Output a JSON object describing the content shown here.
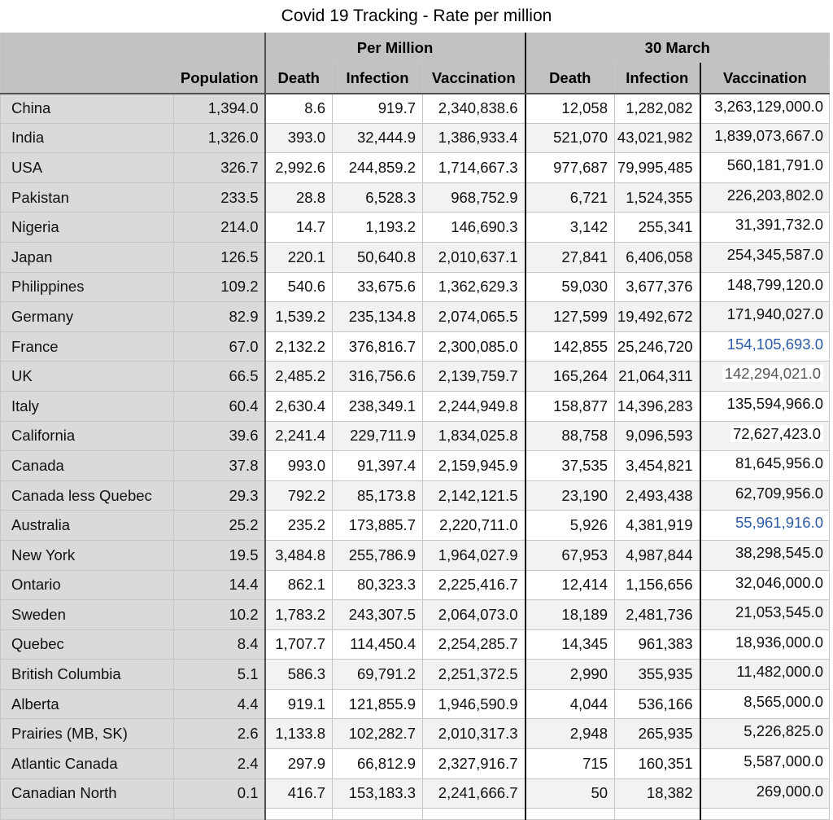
{
  "page": {
    "title": "Covid 19 Tracking - Rate per million"
  },
  "colors": {
    "header_bg": "#c2c2c2",
    "label_col_bg": "#dadada",
    "row_alt_bg": "#f2f2f2",
    "border_light": "#c6c6c6",
    "border_dark": "#4f4f4f",
    "border_black": "#161616",
    "blue_value_text": "#2e5ca6",
    "gray_value_text": "#57575a",
    "highlight_bg": "#ffffff"
  },
  "chart_data": {
    "type": "table",
    "title": "Covid 19 Tracking - Rate per million",
    "group_headers": [
      {
        "label": "Per Million",
        "span": 3
      },
      {
        "label": "30 March",
        "span": 3
      }
    ],
    "columns": [
      "",
      "Population",
      "Death",
      "Infection",
      "Vaccination",
      "Death",
      "Infection",
      "Vaccination"
    ],
    "rows": [
      [
        "China",
        "1,394.0",
        "8.6",
        "919.7",
        "2,340,838.6",
        "12,058",
        "1,282,082",
        "3,263,129,000.0"
      ],
      [
        "India",
        "1,326.0",
        "393.0",
        "32,444.9",
        "1,386,933.4",
        "521,070",
        "43,021,982",
        "1,839,073,667.0"
      ],
      [
        "USA",
        "326.7",
        "2,992.6",
        "244,859.2",
        "1,714,667.3",
        "977,687",
        "79,995,485",
        "560,181,791.0"
      ],
      [
        "Pakistan",
        "233.5",
        "28.8",
        "6,528.3",
        "968,752.9",
        "6,721",
        "1,524,355",
        "226,203,802.0"
      ],
      [
        "Nigeria",
        "214.0",
        "14.7",
        "1,193.2",
        "146,690.3",
        "3,142",
        "255,341",
        "31,391,732.0"
      ],
      [
        "Japan",
        "126.5",
        "220.1",
        "50,640.8",
        "2,010,637.1",
        "27,841",
        "6,406,058",
        "254,345,587.0"
      ],
      [
        "Philippines",
        "109.2",
        "540.6",
        "33,675.6",
        "1,362,629.3",
        "59,030",
        "3,677,376",
        "148,799,120.0"
      ],
      [
        "Germany",
        "82.9",
        "1,539.2",
        "235,134.8",
        "2,074,065.5",
        "127,599",
        "19,492,672",
        "171,940,027.0"
      ],
      [
        "France",
        "67.0",
        "2,132.2",
        "376,816.7",
        "2,300,085.0",
        "142,855",
        "25,246,720",
        "154,105,693.0"
      ],
      [
        "UK",
        "66.5",
        "2,485.2",
        "316,756.6",
        "2,139,759.7",
        "165,264",
        "21,064,311",
        "142,294,021.0"
      ],
      [
        "Italy",
        "60.4",
        "2,630.4",
        "238,349.1",
        "2,244,949.8",
        "158,877",
        "14,396,283",
        "135,594,966.0"
      ],
      [
        "California",
        "39.6",
        "2,241.4",
        "229,711.9",
        "1,834,025.8",
        "88,758",
        "9,096,593",
        "72,627,423.0"
      ],
      [
        "Canada",
        "37.8",
        "993.0",
        "91,397.4",
        "2,159,945.9",
        "37,535",
        "3,454,821",
        "81,645,956.0"
      ],
      [
        "Canada less Quebec",
        "29.3",
        "792.2",
        "85,173.8",
        "2,142,121.5",
        "23,190",
        "2,493,438",
        "62,709,956.0"
      ],
      [
        "Australia",
        "25.2",
        "235.2",
        "173,885.7",
        "2,220,711.0",
        "5,926",
        "4,381,919",
        "55,961,916.0"
      ],
      [
        "New York",
        "19.5",
        "3,484.8",
        "255,786.9",
        "1,964,027.9",
        "67,953",
        "4,987,844",
        "38,298,545.0"
      ],
      [
        "Ontario",
        "14.4",
        "862.1",
        "80,323.3",
        "2,225,416.7",
        "12,414",
        "1,156,656",
        "32,046,000.0"
      ],
      [
        "Sweden",
        "10.2",
        "1,783.2",
        "243,307.5",
        "2,064,073.0",
        "18,189",
        "2,481,736",
        "21,053,545.0"
      ],
      [
        "Quebec",
        "8.4",
        "1,707.7",
        "114,450.4",
        "2,254,285.7",
        "14,345",
        "961,383",
        "18,936,000.0"
      ],
      [
        "British Columbia",
        "5.1",
        "586.3",
        "69,791.2",
        "2,251,372.5",
        "2,990",
        "355,935",
        "11,482,000.0"
      ],
      [
        "Alberta",
        "4.4",
        "919.1",
        "121,855.9",
        "1,946,590.9",
        "4,044",
        "536,166",
        "8,565,000.0"
      ],
      [
        "Prairies (MB, SK)",
        "2.6",
        "1,133.8",
        "102,282.7",
        "2,010,317.3",
        "2,948",
        "265,935",
        "5,226,825.0"
      ],
      [
        "Atlantic Canada",
        "2.4",
        "297.9",
        "66,812.9",
        "2,327,916.7",
        "715",
        "160,351",
        "5,587,000.0"
      ],
      [
        "Canadian North",
        "0.1",
        "416.7",
        "153,183.3",
        "2,241,666.7",
        "50",
        "18,382",
        "269,000.0"
      ]
    ],
    "special_cells": [
      {
        "row": "France",
        "column": "30 March Vaccination",
        "text_color": "#2e5ca6"
      },
      {
        "row": "UK",
        "column": "30 March Vaccination",
        "text_color": "#57575a",
        "highlight": true
      },
      {
        "row": "California",
        "column": "30 March Vaccination",
        "highlight": true
      },
      {
        "row": "Australia",
        "column": "30 March Vaccination",
        "text_color": "#2e5ca6"
      }
    ]
  }
}
